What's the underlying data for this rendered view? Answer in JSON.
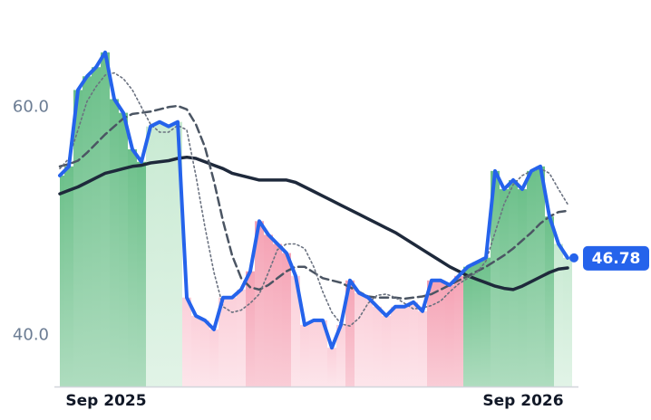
{
  "chart_data": {
    "type": "line",
    "categories": [
      null,
      null,
      null,
      null,
      null,
      "Sep 2025",
      null,
      null,
      null,
      null,
      null,
      null,
      null,
      null,
      null,
      null,
      null,
      null,
      null,
      null,
      null,
      null,
      null,
      null,
      null,
      null,
      null,
      null,
      null,
      null,
      null,
      null,
      null,
      null,
      null,
      null,
      null,
      null,
      null,
      null,
      null,
      null,
      null,
      null,
      null,
      null,
      null,
      null,
      null,
      null,
      null,
      "Sep 2026",
      null,
      null,
      null,
      null,
      null
    ],
    "series": [
      {
        "color": "#2563eb",
        "values": [
          54.0,
          54.8,
          61.5,
          62.7,
          63.5,
          64.8,
          60.7,
          59.5,
          56.3,
          55.2,
          58.3,
          58.7,
          58.3,
          58.7,
          43.3,
          41.7,
          41.3,
          40.5,
          43.3,
          43.3,
          44.0,
          45.6,
          50.0,
          48.8,
          48.0,
          47.2,
          45.2,
          40.9,
          41.3,
          41.3,
          38.9,
          40.9,
          44.8,
          43.7,
          43.3,
          42.5,
          41.7,
          42.5,
          42.5,
          42.9,
          42.1,
          44.8,
          44.8,
          44.4,
          45.2,
          46.0,
          46.4,
          46.8,
          54.4,
          52.8,
          53.6,
          52.8,
          54.4,
          54.8,
          50.4,
          48.0,
          46.78
        ]
      },
      {
        "color": "#6b7280",
        "values": [
          54.6,
          55.5,
          58.0,
          60.5,
          61.8,
          62.8,
          63.0,
          62.5,
          61.5,
          60.0,
          58.5,
          57.8,
          57.8,
          58.4,
          58.0,
          54.0,
          49.5,
          45.5,
          42.5,
          42.0,
          42.2,
          42.8,
          43.6,
          45.5,
          47.5,
          48.0,
          48.0,
          47.6,
          46.0,
          43.8,
          42.0,
          41.0,
          40.8,
          41.5,
          42.8,
          43.5,
          43.6,
          43.3,
          42.8,
          42.3,
          42.4,
          42.6,
          43.0,
          43.8,
          44.5,
          45.0,
          45.5,
          46.5,
          49.0,
          51.5,
          53.2,
          54.0,
          54.4,
          54.6,
          54.2,
          52.8,
          51.5
        ]
      },
      {
        "color": "#4b5563",
        "values": [
          54.8,
          55.0,
          55.3,
          56.0,
          56.8,
          57.6,
          58.3,
          59.0,
          59.4,
          59.5,
          59.6,
          59.8,
          60.0,
          60.1,
          59.8,
          58.5,
          56.5,
          53.5,
          50.0,
          47.0,
          45.0,
          44.2,
          44.0,
          44.4,
          45.0,
          45.6,
          46.0,
          46.0,
          45.5,
          45.0,
          44.8,
          44.6,
          44.2,
          43.8,
          43.4,
          43.3,
          43.3,
          43.3,
          43.2,
          43.3,
          43.4,
          43.6,
          44.0,
          44.4,
          44.8,
          45.2,
          45.6,
          46.0,
          46.5,
          47.0,
          47.6,
          48.3,
          49.0,
          49.8,
          50.4,
          50.8,
          50.9
        ]
      },
      {
        "color": "#1e293b",
        "values": [
          52.4,
          52.7,
          53.0,
          53.4,
          53.8,
          54.2,
          54.4,
          54.6,
          54.8,
          54.9,
          55.1,
          55.2,
          55.3,
          55.5,
          55.6,
          55.5,
          55.2,
          54.9,
          54.6,
          54.2,
          54.0,
          53.8,
          53.6,
          53.6,
          53.6,
          53.6,
          53.4,
          53.0,
          52.6,
          52.2,
          51.8,
          51.4,
          51.0,
          50.6,
          50.2,
          49.8,
          49.4,
          49.0,
          48.5,
          48.0,
          47.5,
          47.0,
          46.5,
          46.0,
          45.6,
          45.2,
          44.9,
          44.6,
          44.3,
          44.1,
          44.0,
          44.3,
          44.7,
          45.1,
          45.5,
          45.8,
          45.9
        ]
      }
    ],
    "fill_colors": {
      "above_strong": "#6cc08a",
      "above_weak": "#c9ead3",
      "below_strong": "#f5a3b5",
      "below_weak": "#fbd0da"
    },
    "ylim": [
      35.5,
      66.5
    ],
    "yticks": [
      {
        "value": 40,
        "label": "40.0"
      },
      {
        "value": 60,
        "label": "60.0"
      }
    ],
    "grid": false
  }
}
